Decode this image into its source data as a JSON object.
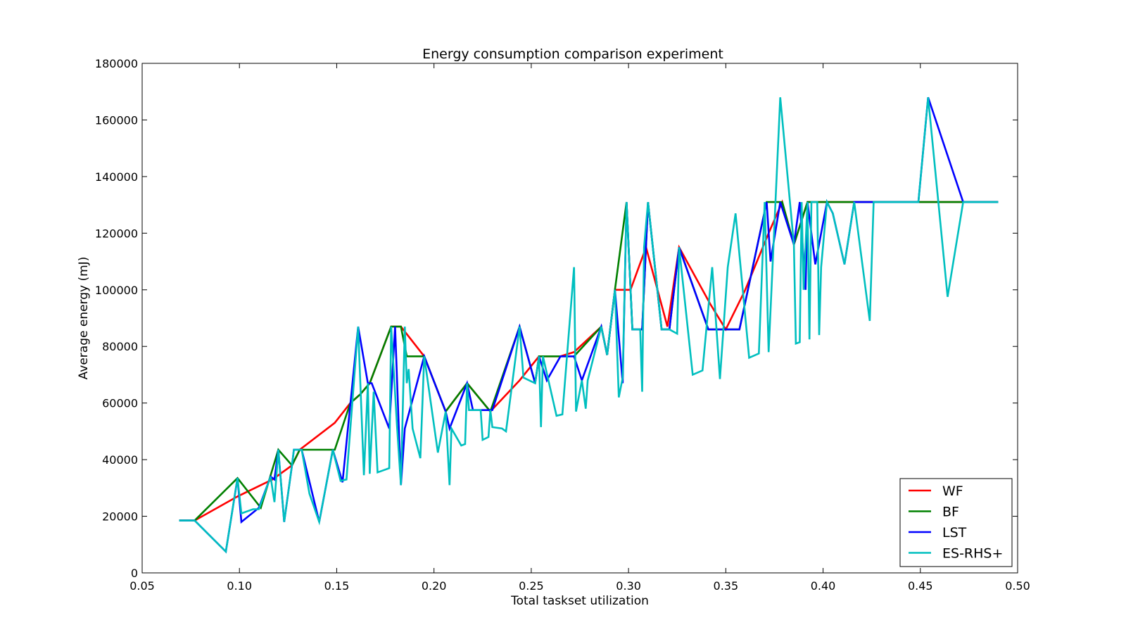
{
  "chart_data": {
    "type": "line",
    "title": "Energy consumption comparison experiment",
    "xlabel": "Total taskset utilization",
    "ylabel": "Average energy (mJ)",
    "xlim": [
      0.05,
      0.5
    ],
    "ylim": [
      0,
      180000
    ],
    "xticks": [
      0.05,
      0.1,
      0.15,
      0.2,
      0.25,
      0.3,
      0.35,
      0.4,
      0.45,
      0.5
    ],
    "xtick_labels": [
      "0.05",
      "0.10",
      "0.15",
      "0.20",
      "0.25",
      "0.30",
      "0.35",
      "0.40",
      "0.45",
      "0.50"
    ],
    "yticks": [
      0,
      20000,
      40000,
      60000,
      80000,
      100000,
      120000,
      140000,
      160000,
      180000
    ],
    "ytick_labels": [
      "0",
      "20000",
      "40000",
      "60000",
      "80000",
      "100000",
      "120000",
      "140000",
      "160000",
      "180000"
    ],
    "grid": false,
    "legend_position": "bottom-right",
    "series": [
      {
        "name": "WF",
        "color": "#ff0000",
        "points": [
          [
            0.069,
            18500
          ],
          [
            0.077,
            18500
          ],
          [
            0.099,
            27000
          ],
          [
            0.111,
            31000
          ],
          [
            0.117,
            33000
          ],
          [
            0.127,
            38000
          ],
          [
            0.131,
            43500
          ],
          [
            0.149,
            53000
          ],
          [
            0.157,
            60000
          ],
          [
            0.162,
            63000
          ],
          [
            0.167,
            67000
          ],
          [
            0.178,
            87000
          ],
          [
            0.183,
            87000
          ],
          [
            0.195,
            76500
          ],
          [
            0.206,
            57000
          ],
          [
            0.217,
            67000
          ],
          [
            0.229,
            57000
          ],
          [
            0.244,
            68000
          ],
          [
            0.254,
            76500
          ],
          [
            0.265,
            76500
          ],
          [
            0.272,
            78000
          ],
          [
            0.286,
            87000
          ],
          [
            0.289,
            77000
          ],
          [
            0.293,
            100000
          ],
          [
            0.301,
            100000
          ],
          [
            0.309,
            115000
          ],
          [
            0.32,
            87000
          ],
          [
            0.326,
            115000
          ],
          [
            0.342,
            95000
          ],
          [
            0.35,
            86000
          ],
          [
            0.36,
            100000
          ],
          [
            0.372,
            120000
          ],
          [
            0.379,
            131000
          ],
          [
            0.385,
            116000
          ],
          [
            0.392,
            131000
          ],
          [
            0.41,
            131000
          ],
          [
            0.45,
            131000
          ],
          [
            0.49,
            131000
          ]
        ]
      },
      {
        "name": "BF",
        "color": "#008000",
        "points": [
          [
            0.069,
            18500
          ],
          [
            0.077,
            18500
          ],
          [
            0.099,
            33500
          ],
          [
            0.111,
            23000
          ],
          [
            0.12,
            43500
          ],
          [
            0.127,
            38000
          ],
          [
            0.131,
            43500
          ],
          [
            0.149,
            43500
          ],
          [
            0.157,
            60000
          ],
          [
            0.162,
            63000
          ],
          [
            0.167,
            67000
          ],
          [
            0.178,
            87000
          ],
          [
            0.183,
            87000
          ],
          [
            0.186,
            76500
          ],
          [
            0.195,
            76500
          ],
          [
            0.206,
            57000
          ],
          [
            0.217,
            67000
          ],
          [
            0.229,
            57000
          ],
          [
            0.244,
            87000
          ],
          [
            0.252,
            67000
          ],
          [
            0.254,
            76500
          ],
          [
            0.265,
            76500
          ],
          [
            0.272,
            76500
          ],
          [
            0.286,
            87000
          ],
          [
            0.289,
            77000
          ],
          [
            0.293,
            100000
          ],
          [
            0.299,
            131000
          ],
          [
            0.302,
            86000
          ],
          [
            0.307,
            86000
          ],
          [
            0.31,
            131000
          ],
          [
            0.317,
            86000
          ],
          [
            0.321,
            86000
          ],
          [
            0.326,
            115000
          ],
          [
            0.341,
            86000
          ],
          [
            0.357,
            86000
          ],
          [
            0.371,
            131000
          ],
          [
            0.379,
            131000
          ],
          [
            0.385,
            116000
          ],
          [
            0.392,
            131000
          ],
          [
            0.416,
            131000
          ],
          [
            0.472,
            131000
          ],
          [
            0.49,
            131000
          ]
        ]
      },
      {
        "name": "LST",
        "color": "#0000ff",
        "points": [
          [
            0.069,
            18500
          ],
          [
            0.077,
            18500
          ],
          [
            0.093,
            7500
          ],
          [
            0.099,
            33500
          ],
          [
            0.101,
            18000
          ],
          [
            0.11,
            23000
          ],
          [
            0.116,
            34000
          ],
          [
            0.118,
            33000
          ],
          [
            0.12,
            43500
          ],
          [
            0.123,
            18000
          ],
          [
            0.127,
            38000
          ],
          [
            0.128,
            43500
          ],
          [
            0.132,
            43500
          ],
          [
            0.141,
            18000
          ],
          [
            0.148,
            43500
          ],
          [
            0.153,
            32000
          ],
          [
            0.161,
            87000
          ],
          [
            0.166,
            67000
          ],
          [
            0.168,
            67000
          ],
          [
            0.177,
            51000
          ],
          [
            0.18,
            87000
          ],
          [
            0.183,
            31000
          ],
          [
            0.185,
            51000
          ],
          [
            0.195,
            76500
          ],
          [
            0.206,
            57000
          ],
          [
            0.208,
            51000
          ],
          [
            0.217,
            67000
          ],
          [
            0.22,
            57500
          ],
          [
            0.23,
            57500
          ],
          [
            0.244,
            87000
          ],
          [
            0.252,
            67000
          ],
          [
            0.254,
            76500
          ],
          [
            0.258,
            68000
          ],
          [
            0.265,
            76500
          ],
          [
            0.272,
            76500
          ],
          [
            0.276,
            68000
          ],
          [
            0.286,
            87000
          ],
          [
            0.289,
            77000
          ],
          [
            0.293,
            100000
          ],
          [
            0.297,
            67000
          ],
          [
            0.299,
            131000
          ],
          [
            0.302,
            86000
          ],
          [
            0.307,
            86000
          ],
          [
            0.31,
            131000
          ],
          [
            0.317,
            86000
          ],
          [
            0.321,
            86000
          ],
          [
            0.326,
            115000
          ],
          [
            0.341,
            86000
          ],
          [
            0.357,
            86000
          ],
          [
            0.371,
            131000
          ],
          [
            0.373,
            110000
          ],
          [
            0.378,
            131000
          ],
          [
            0.385,
            116000
          ],
          [
            0.388,
            131000
          ],
          [
            0.391,
            100000
          ],
          [
            0.392,
            131000
          ],
          [
            0.396,
            109000
          ],
          [
            0.402,
            131000
          ],
          [
            0.405,
            127000
          ],
          [
            0.411,
            109000
          ],
          [
            0.416,
            131000
          ],
          [
            0.426,
            131000
          ],
          [
            0.449,
            131000
          ],
          [
            0.454,
            168000
          ],
          [
            0.472,
            131000
          ],
          [
            0.49,
            131000
          ]
        ]
      },
      {
        "name": "ES-RHS+",
        "color": "#00bfbf",
        "points": [
          [
            0.069,
            18500
          ],
          [
            0.077,
            18500
          ],
          [
            0.093,
            7500
          ],
          [
            0.099,
            33500
          ],
          [
            0.101,
            21000
          ],
          [
            0.107,
            22500
          ],
          [
            0.11,
            22500
          ],
          [
            0.116,
            34000
          ],
          [
            0.118,
            25000
          ],
          [
            0.12,
            43500
          ],
          [
            0.123,
            18000
          ],
          [
            0.127,
            38000
          ],
          [
            0.128,
            43500
          ],
          [
            0.132,
            43500
          ],
          [
            0.136,
            28000
          ],
          [
            0.141,
            18000
          ],
          [
            0.148,
            43500
          ],
          [
            0.152,
            32500
          ],
          [
            0.155,
            33000
          ],
          [
            0.161,
            87000
          ],
          [
            0.164,
            34500
          ],
          [
            0.166,
            67000
          ],
          [
            0.167,
            35000
          ],
          [
            0.169,
            64000
          ],
          [
            0.171,
            35500
          ],
          [
            0.177,
            37000
          ],
          [
            0.178,
            87000
          ],
          [
            0.181,
            52000
          ],
          [
            0.183,
            31000
          ],
          [
            0.185,
            87000
          ],
          [
            0.186,
            67000
          ],
          [
            0.187,
            72000
          ],
          [
            0.189,
            51000
          ],
          [
            0.193,
            40500
          ],
          [
            0.195,
            76500
          ],
          [
            0.202,
            42500
          ],
          [
            0.206,
            57000
          ],
          [
            0.208,
            31000
          ],
          [
            0.209,
            51000
          ],
          [
            0.214,
            45000
          ],
          [
            0.216,
            45500
          ],
          [
            0.217,
            67000
          ],
          [
            0.218,
            57500
          ],
          [
            0.224,
            57500
          ],
          [
            0.225,
            47000
          ],
          [
            0.228,
            48000
          ],
          [
            0.229,
            57500
          ],
          [
            0.23,
            51500
          ],
          [
            0.235,
            51000
          ],
          [
            0.237,
            50000
          ],
          [
            0.244,
            87000
          ],
          [
            0.246,
            69000
          ],
          [
            0.252,
            67000
          ],
          [
            0.254,
            76500
          ],
          [
            0.255,
            51500
          ],
          [
            0.256,
            76500
          ],
          [
            0.263,
            55500
          ],
          [
            0.266,
            56000
          ],
          [
            0.272,
            108000
          ],
          [
            0.273,
            57000
          ],
          [
            0.276,
            68000
          ],
          [
            0.278,
            58000
          ],
          [
            0.279,
            68000
          ],
          [
            0.286,
            87000
          ],
          [
            0.289,
            77000
          ],
          [
            0.293,
            100000
          ],
          [
            0.295,
            62000
          ],
          [
            0.297,
            69000
          ],
          [
            0.299,
            131000
          ],
          [
            0.302,
            86000
          ],
          [
            0.306,
            86000
          ],
          [
            0.307,
            64000
          ],
          [
            0.308,
            115000
          ],
          [
            0.31,
            131000
          ],
          [
            0.317,
            86000
          ],
          [
            0.321,
            86000
          ],
          [
            0.325,
            84500
          ],
          [
            0.326,
            115000
          ],
          [
            0.333,
            70000
          ],
          [
            0.338,
            71500
          ],
          [
            0.343,
            108000
          ],
          [
            0.347,
            68500
          ],
          [
            0.351,
            108000
          ],
          [
            0.355,
            127000
          ],
          [
            0.362,
            76000
          ],
          [
            0.367,
            77500
          ],
          [
            0.37,
            131000
          ],
          [
            0.372,
            78000
          ],
          [
            0.378,
            168000
          ],
          [
            0.385,
            116000
          ],
          [
            0.386,
            81000
          ],
          [
            0.388,
            81500
          ],
          [
            0.389,
            131000
          ],
          [
            0.39,
            100000
          ],
          [
            0.392,
            131000
          ],
          [
            0.393,
            82500
          ],
          [
            0.394,
            131000
          ],
          [
            0.397,
            131000
          ],
          [
            0.398,
            84000
          ],
          [
            0.399,
            108000
          ],
          [
            0.402,
            131000
          ],
          [
            0.405,
            127000
          ],
          [
            0.411,
            109000
          ],
          [
            0.416,
            131000
          ],
          [
            0.424,
            89000
          ],
          [
            0.426,
            131000
          ],
          [
            0.449,
            131000
          ],
          [
            0.454,
            168000
          ],
          [
            0.464,
            97500
          ],
          [
            0.472,
            131000
          ],
          [
            0.49,
            131000
          ]
        ]
      }
    ]
  }
}
